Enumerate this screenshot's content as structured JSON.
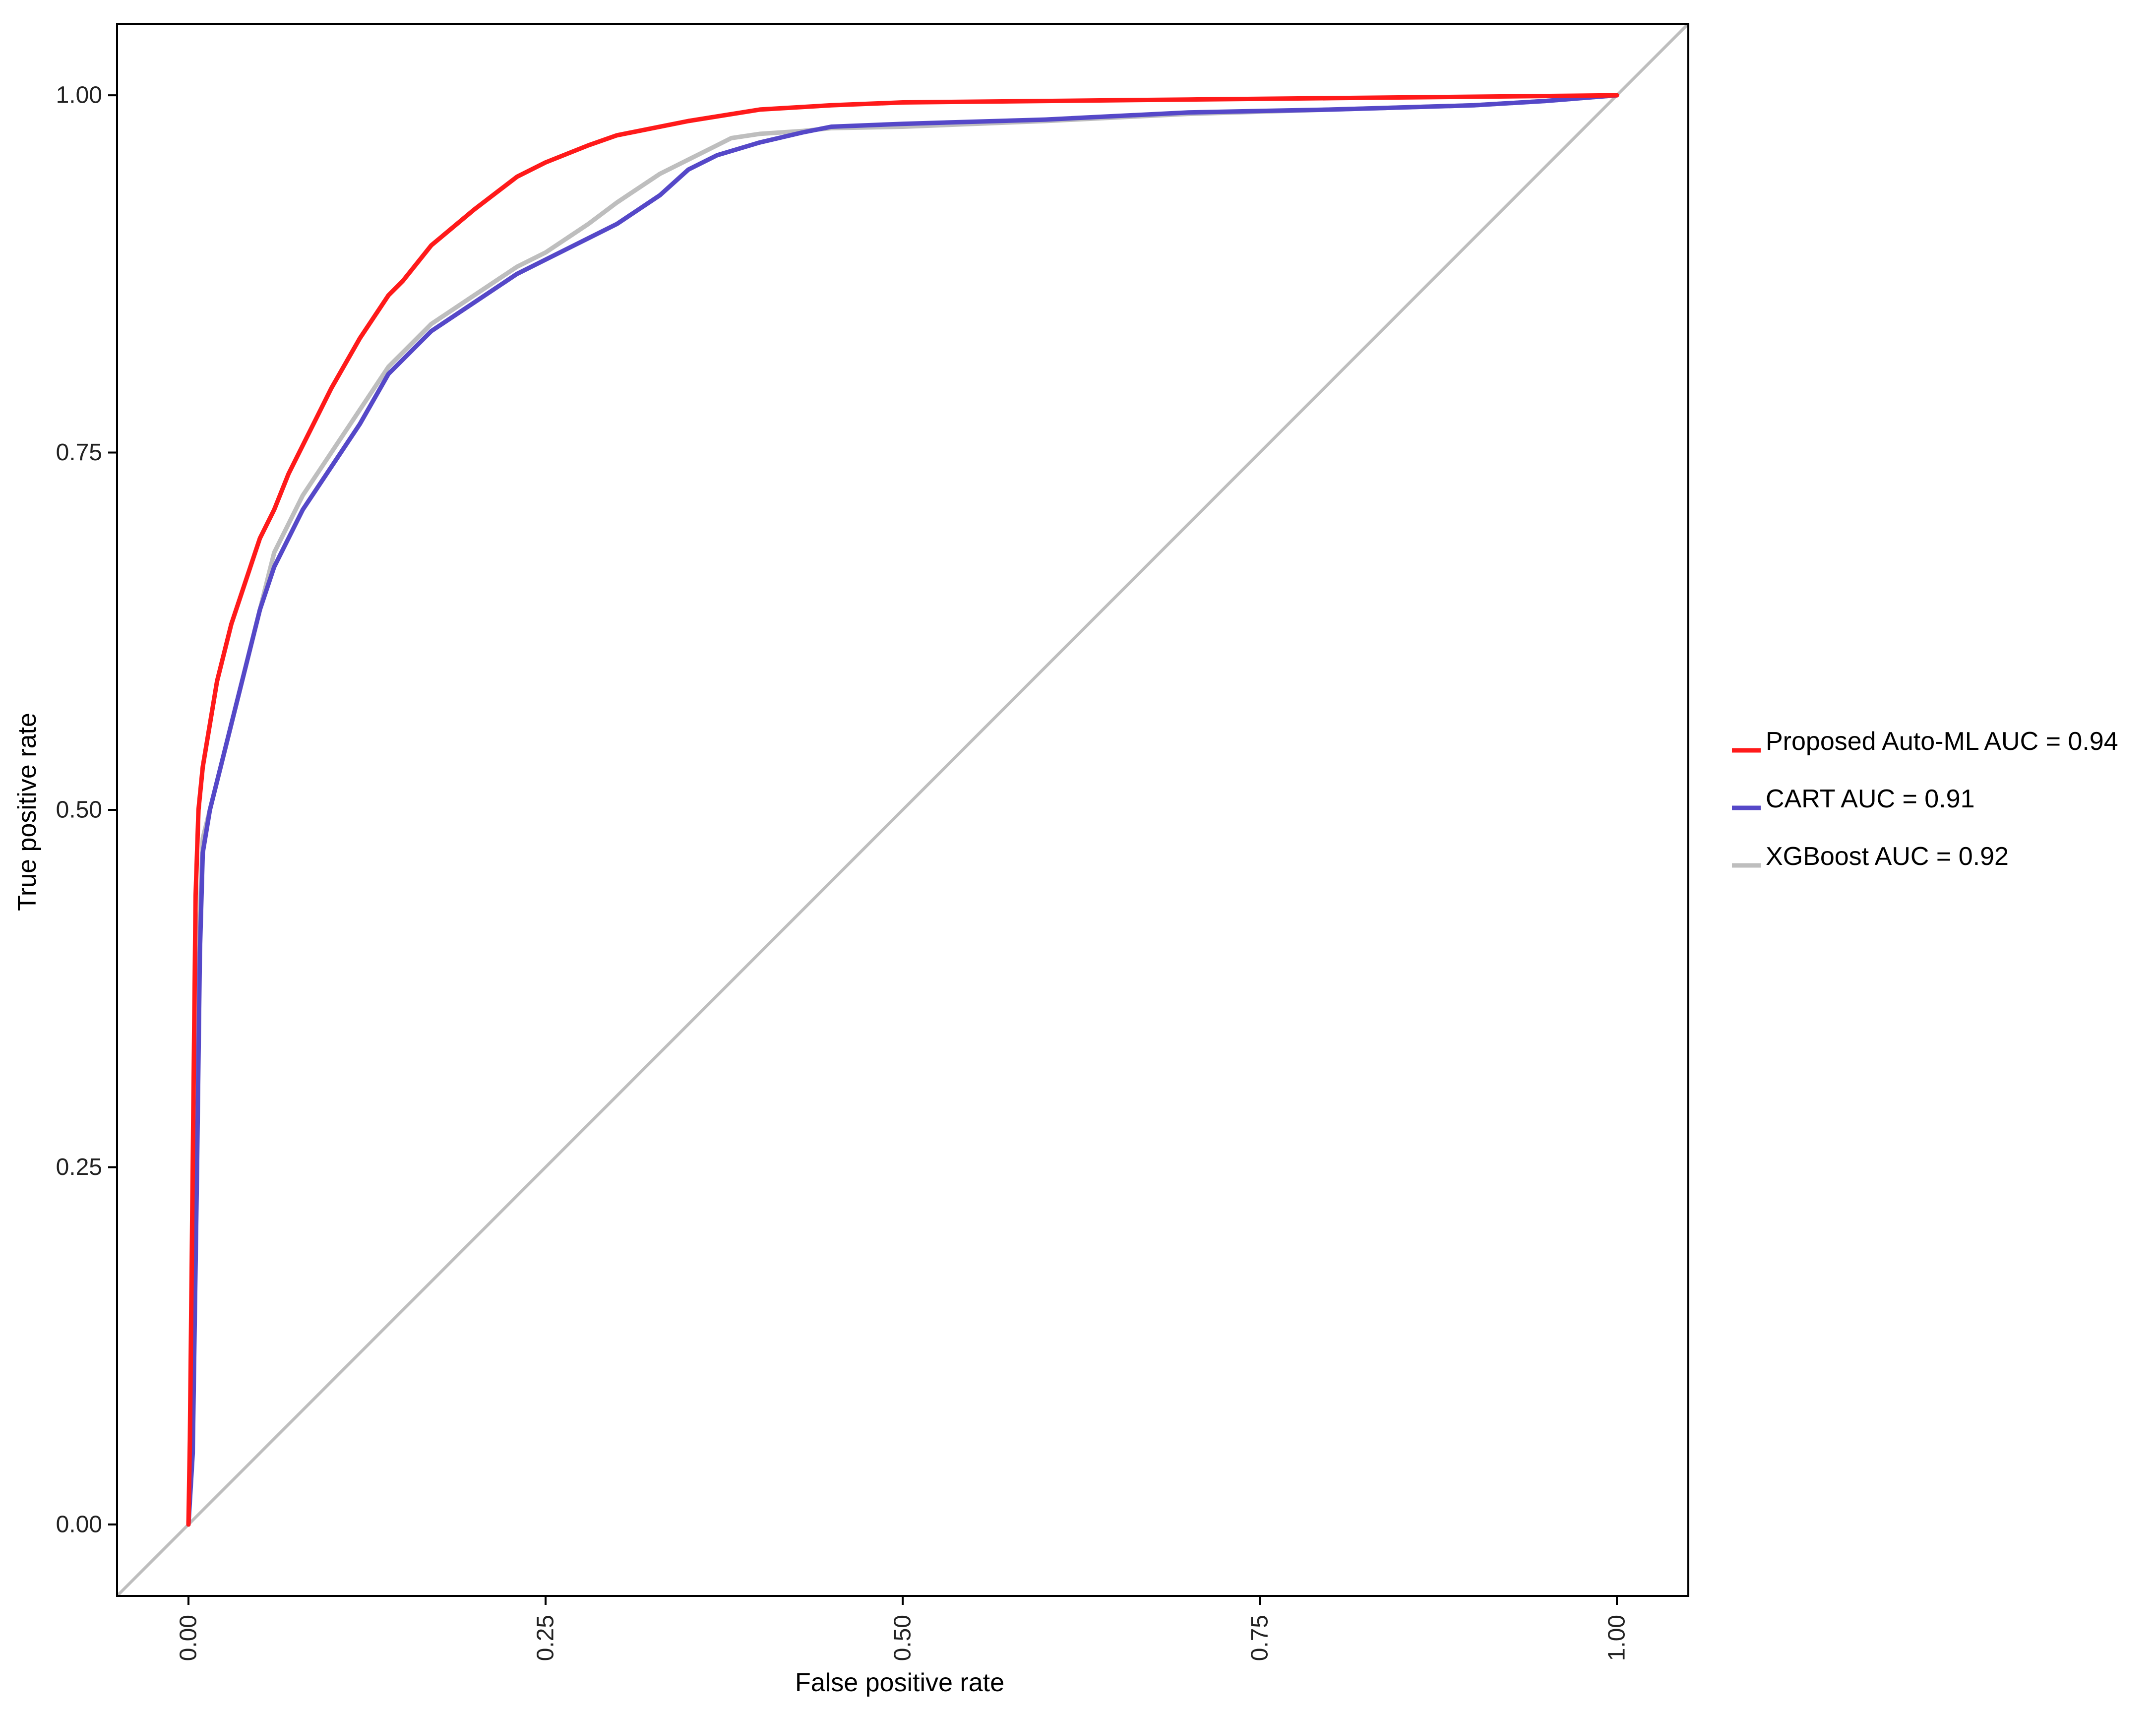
{
  "chart_data": {
    "type": "line",
    "title": "",
    "xlabel": "False positive rate",
    "ylabel": "True positive rate",
    "xlim": [
      -0.05,
      1.05
    ],
    "ylim": [
      -0.05,
      1.05
    ],
    "x_ticks": [
      0.0,
      0.25,
      0.5,
      0.75,
      1.0
    ],
    "x_tick_labels": [
      "0.00",
      "0.25",
      "0.50",
      "0.75",
      "1.00"
    ],
    "y_ticks": [
      0.0,
      0.25,
      0.5,
      0.75,
      1.0
    ],
    "y_tick_labels": [
      "0.00",
      "0.25",
      "0.50",
      "0.75",
      "1.00"
    ],
    "grid": false,
    "legend_position": "right",
    "reference_line": {
      "x": [
        -0.05,
        1.05
      ],
      "y": [
        -0.05,
        1.05
      ],
      "color": "#bebebe"
    },
    "series": [
      {
        "name": "XGBoost AUC = 0.92",
        "color": "#bebebe",
        "x": [
          0.0,
          0.002,
          0.005,
          0.007,
          0.01,
          0.015,
          0.02,
          0.03,
          0.04,
          0.05,
          0.06,
          0.07,
          0.08,
          0.1,
          0.12,
          0.14,
          0.15,
          0.17,
          0.2,
          0.23,
          0.25,
          0.28,
          0.3,
          0.33,
          0.35,
          0.37,
          0.38,
          0.4,
          0.43,
          0.45,
          0.5,
          0.6,
          0.7,
          0.8,
          0.9,
          0.95,
          1.0
        ],
        "y": [
          0.0,
          0.05,
          0.25,
          0.4,
          0.48,
          0.5,
          0.52,
          0.56,
          0.6,
          0.64,
          0.68,
          0.7,
          0.72,
          0.75,
          0.78,
          0.81,
          0.82,
          0.84,
          0.86,
          0.88,
          0.89,
          0.91,
          0.925,
          0.945,
          0.955,
          0.965,
          0.97,
          0.973,
          0.975,
          0.977,
          0.978,
          0.982,
          0.987,
          0.99,
          0.993,
          0.996,
          1.0
        ]
      },
      {
        "name": "CART AUC = 0.91",
        "color": "#5548c8",
        "x": [
          0.0,
          0.003,
          0.006,
          0.008,
          0.01,
          0.015,
          0.02,
          0.03,
          0.04,
          0.05,
          0.06,
          0.07,
          0.08,
          0.1,
          0.12,
          0.14,
          0.15,
          0.17,
          0.2,
          0.23,
          0.25,
          0.28,
          0.3,
          0.33,
          0.35,
          0.37,
          0.4,
          0.43,
          0.45,
          0.5,
          0.6,
          0.7,
          0.8,
          0.9,
          0.95,
          1.0
        ],
        "y": [
          0.0,
          0.05,
          0.25,
          0.4,
          0.47,
          0.5,
          0.52,
          0.56,
          0.6,
          0.64,
          0.67,
          0.69,
          0.71,
          0.74,
          0.77,
          0.805,
          0.815,
          0.835,
          0.855,
          0.875,
          0.885,
          0.9,
          0.91,
          0.93,
          0.948,
          0.958,
          0.967,
          0.974,
          0.978,
          0.98,
          0.983,
          0.988,
          0.99,
          0.993,
          0.996,
          1.0
        ]
      },
      {
        "name": "Proposed Auto-ML AUC = 0.94",
        "color": "#ff1a1a",
        "x": [
          0.0,
          0.001,
          0.003,
          0.005,
          0.007,
          0.01,
          0.015,
          0.02,
          0.03,
          0.04,
          0.05,
          0.06,
          0.07,
          0.08,
          0.1,
          0.12,
          0.14,
          0.15,
          0.17,
          0.2,
          0.23,
          0.25,
          0.28,
          0.3,
          0.35,
          0.4,
          0.45,
          0.5,
          0.6,
          0.7,
          0.8,
          0.9,
          1.0
        ],
        "y": [
          0.0,
          0.06,
          0.25,
          0.44,
          0.5,
          0.53,
          0.56,
          0.59,
          0.63,
          0.66,
          0.69,
          0.71,
          0.735,
          0.755,
          0.795,
          0.83,
          0.86,
          0.87,
          0.895,
          0.92,
          0.943,
          0.953,
          0.965,
          0.972,
          0.982,
          0.99,
          0.993,
          0.995,
          0.996,
          0.997,
          0.998,
          0.999,
          1.0
        ]
      }
    ]
  }
}
